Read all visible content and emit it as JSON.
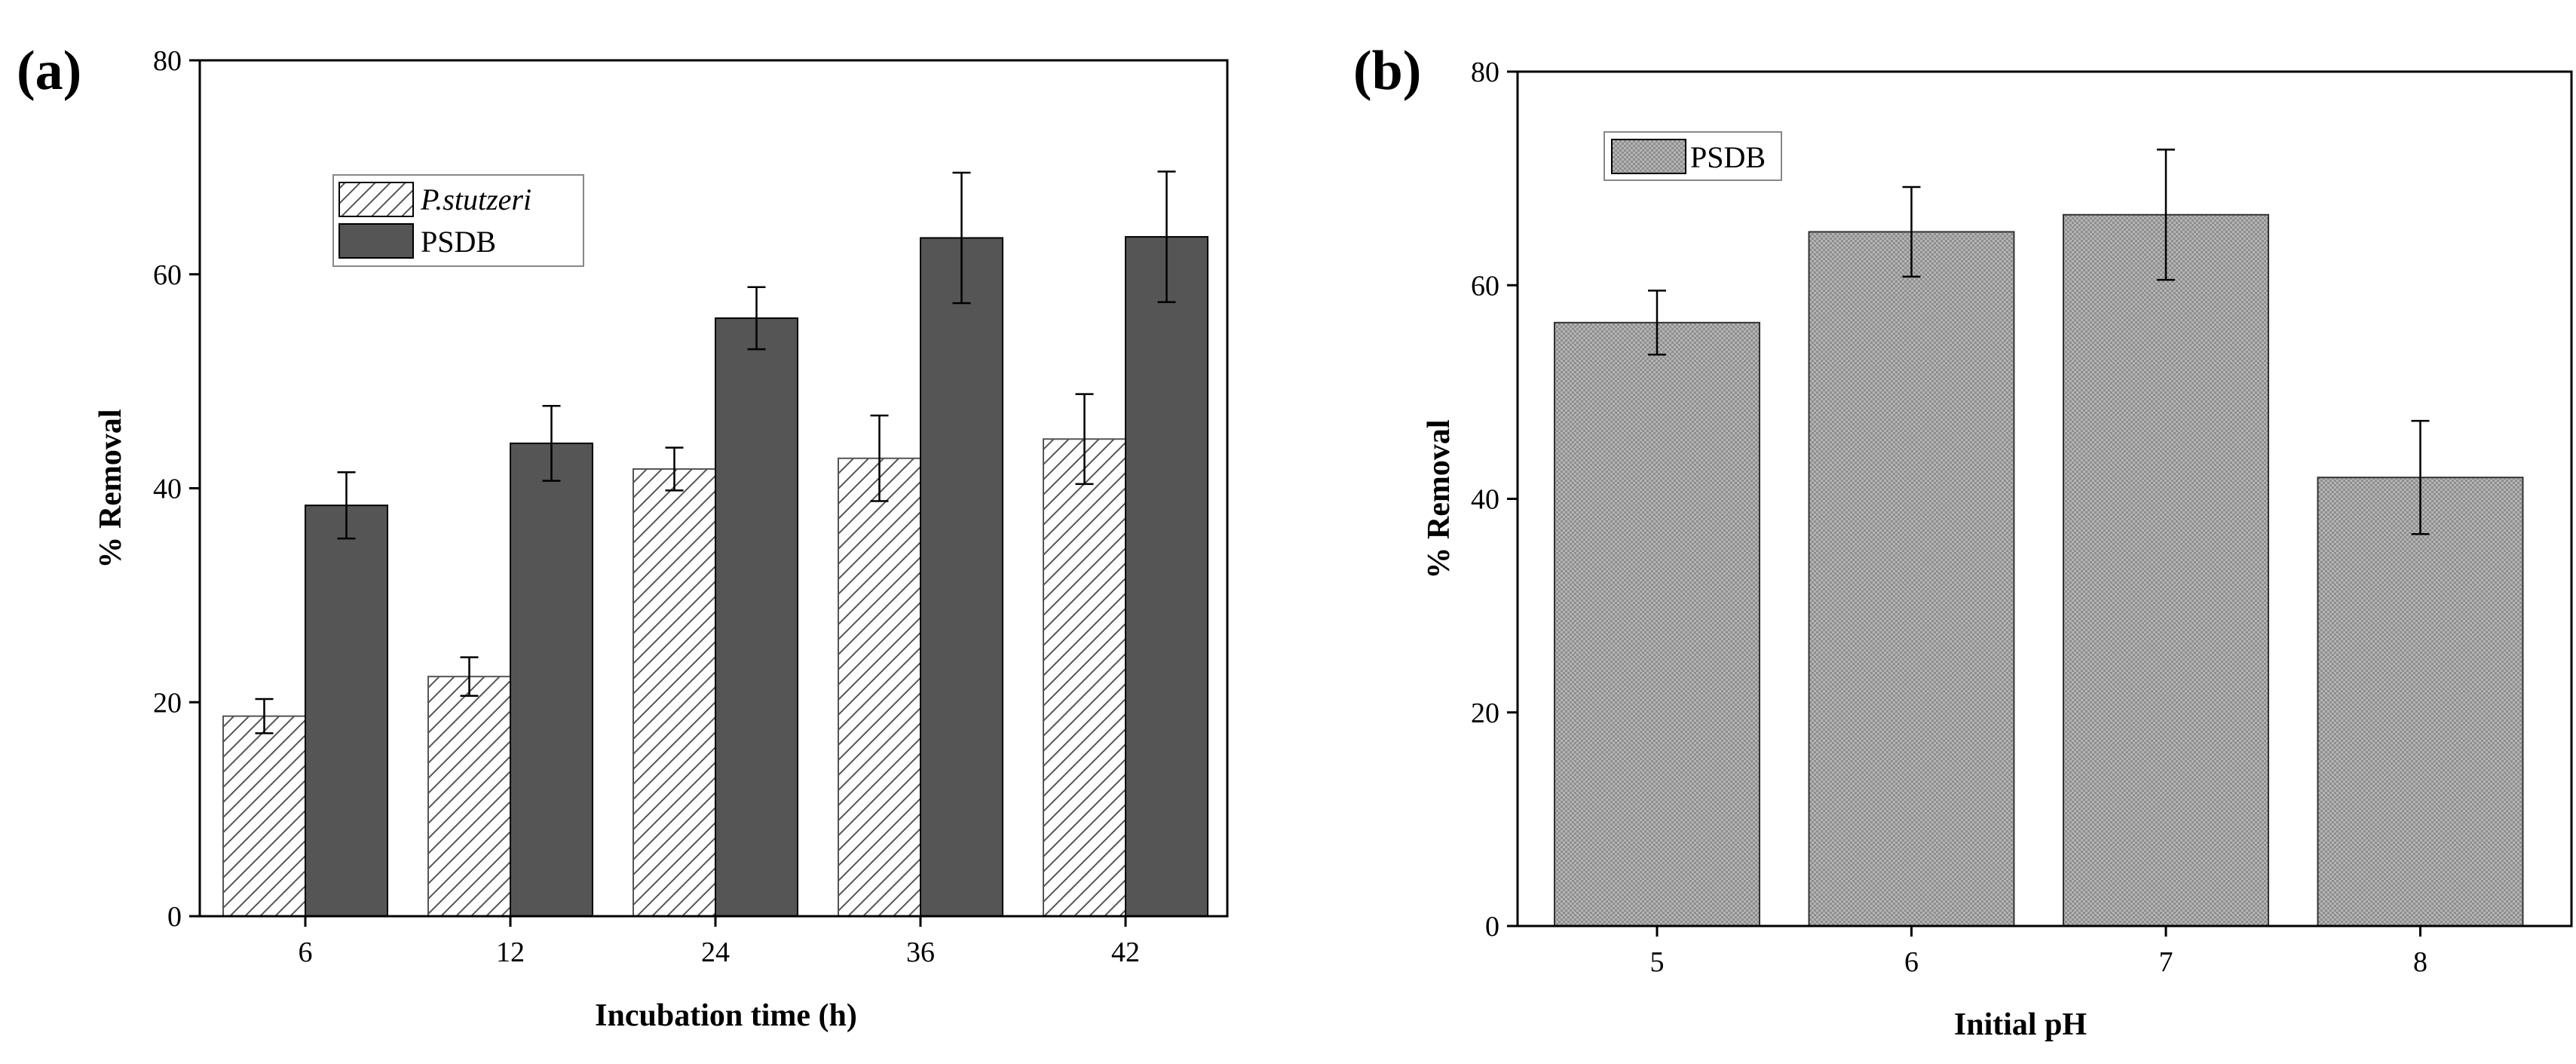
{
  "chart_data": [
    {
      "panel_label": "(a)",
      "type": "bar",
      "xlabel": "Incubation time (h)",
      "ylabel": "% Removal",
      "ylim": [
        0,
        80
      ],
      "yticks": [
        "0",
        "20",
        "40",
        "60",
        "80"
      ],
      "categories": [
        "6",
        "12",
        "24",
        "36",
        "42"
      ],
      "legend_position": "top-left",
      "series": [
        {
          "name": "P.stutzeri",
          "pattern": "diagonal-hatch",
          "values": [
            18.7,
            22.4,
            41.8,
            42.8,
            44.6
          ],
          "errors": [
            1.6,
            1.8,
            2.0,
            4.0,
            4.2
          ]
        },
        {
          "name": "PSDB",
          "pattern": "solid",
          "color": "#555555",
          "values": [
            38.4,
            44.2,
            55.9,
            63.4,
            63.5
          ],
          "errors": [
            3.1,
            3.5,
            2.9,
            6.1,
            6.1
          ]
        }
      ]
    },
    {
      "panel_label": "(b)",
      "type": "bar",
      "xlabel": "Initial pH",
      "ylabel": "% Removal",
      "ylim": [
        0,
        80
      ],
      "yticks": [
        "0",
        "20",
        "40",
        "60",
        "80"
      ],
      "categories": [
        "5",
        "6",
        "7",
        "8"
      ],
      "legend_position": "top-left",
      "series": [
        {
          "name": "PSDB",
          "pattern": "dotted-gray",
          "color": "#a8a8a8",
          "values": [
            56.5,
            65.0,
            66.6,
            42.0
          ],
          "errors": [
            3.0,
            4.2,
            6.1,
            5.3
          ]
        }
      ]
    }
  ]
}
